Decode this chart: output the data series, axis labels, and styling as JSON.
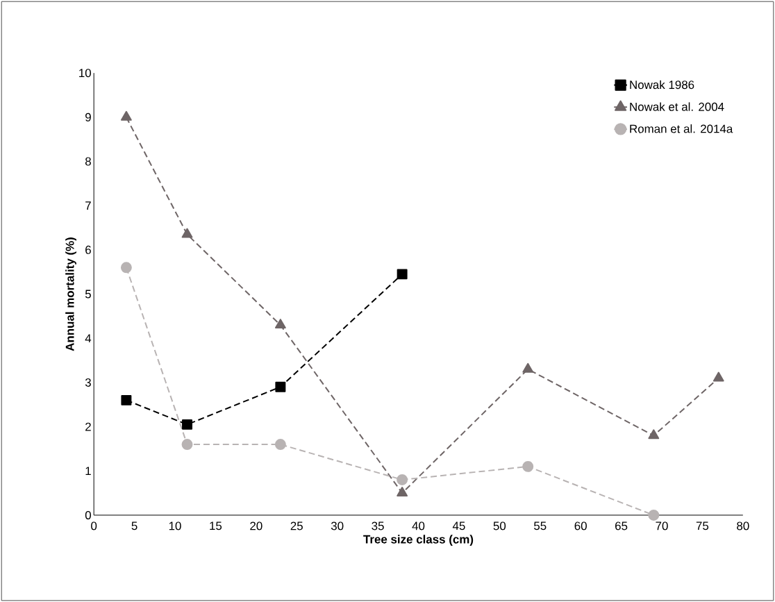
{
  "chart_data": {
    "type": "line",
    "xlabel": "Tree size class (cm)",
    "ylabel": "Annual mortality (%)",
    "xlim": [
      0,
      80
    ],
    "xticks": [
      0,
      5,
      10,
      15,
      20,
      25,
      30,
      35,
      40,
      45,
      50,
      55,
      60,
      65,
      70,
      75,
      80
    ],
    "ylim": [
      0,
      10
    ],
    "yticks": [
      0,
      1,
      2,
      3,
      4,
      5,
      6,
      7,
      8,
      9,
      10
    ],
    "grid": false,
    "legend": "top right",
    "line_style": "dashed",
    "series": [
      {
        "name": "Nowak 1986",
        "color": "#000000",
        "marker": "square",
        "x": [
          4,
          11.5,
          23,
          38
        ],
        "values": [
          2.6,
          2.05,
          2.9,
          5.45
        ]
      },
      {
        "name": "Nowak et al. 2004",
        "color": "#6e6566",
        "marker": "triangle",
        "x": [
          4,
          11.5,
          23,
          38,
          53.5,
          69,
          77
        ],
        "values": [
          9.0,
          6.35,
          4.3,
          0.5,
          3.3,
          1.8,
          3.1
        ]
      },
      {
        "name": "Roman et al. 2014a",
        "color": "#b8b3b3",
        "marker": "circle",
        "x": [
          4,
          11.5,
          23,
          38,
          53.5,
          69
        ],
        "values": [
          5.6,
          1.6,
          1.6,
          0.8,
          1.1,
          0.0
        ]
      }
    ]
  }
}
